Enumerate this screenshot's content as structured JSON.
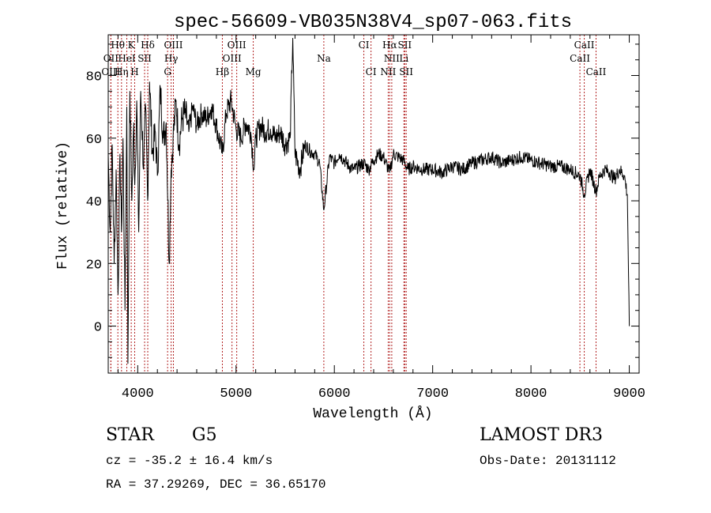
{
  "chart_data": {
    "type": "line",
    "title": "spec-56609-VB035N38V4_sp07-063.fits",
    "xlabel": "Wavelength (Å)",
    "ylabel": "Flux (relative)",
    "xlim": [
      3700,
      9100
    ],
    "ylim": [
      -15,
      93
    ],
    "xticks": [
      4000,
      5000,
      6000,
      7000,
      8000,
      9000
    ],
    "yticks": [
      0,
      20,
      40,
      60,
      80
    ],
    "series": [
      {
        "name": "flux",
        "x": [
          3700,
          3720,
          3740,
          3760,
          3780,
          3800,
          3820,
          3835,
          3850,
          3870,
          3889,
          3900,
          3920,
          3940,
          3960,
          3970,
          3990,
          4010,
          4030,
          4060,
          4080,
          4101,
          4120,
          4150,
          4180,
          4200,
          4230,
          4260,
          4290,
          4320,
          4340,
          4360,
          4390,
          4420,
          4450,
          4480,
          4520,
          4560,
          4600,
          4650,
          4700,
          4750,
          4800,
          4861,
          4900,
          4950,
          5000,
          5050,
          5100,
          5150,
          5183,
          5200,
          5250,
          5300,
          5350,
          5400,
          5450,
          5500,
          5550,
          5577,
          5600,
          5650,
          5700,
          5750,
          5800,
          5850,
          5893,
          5950,
          6000,
          6050,
          6100,
          6150,
          6200,
          6250,
          6300,
          6350,
          6400,
          6450,
          6500,
          6563,
          6600,
          6650,
          6700,
          6750,
          6800,
          6900,
          7000,
          7100,
          7200,
          7300,
          7400,
          7500,
          7600,
          7700,
          7800,
          7900,
          8000,
          8100,
          8200,
          8300,
          8400,
          8500,
          8542,
          8600,
          8662,
          8700,
          8750,
          8800,
          8850,
          8900,
          8950,
          8980,
          9000
        ],
        "y": [
          55,
          30,
          58,
          20,
          50,
          10,
          55,
          30,
          60,
          5,
          70,
          -12,
          75,
          40,
          65,
          45,
          72,
          30,
          75,
          50,
          70,
          40,
          78,
          55,
          62,
          48,
          76,
          60,
          65,
          20,
          50,
          60,
          72,
          58,
          66,
          68,
          62,
          70,
          64,
          68,
          66,
          70,
          64,
          55,
          68,
          72,
          63,
          60,
          65,
          62,
          50,
          60,
          64,
          62,
          63,
          60,
          62,
          58,
          60,
          92,
          55,
          50,
          58,
          56,
          55,
          52,
          37,
          54,
          52,
          55,
          53,
          51,
          50,
          51,
          52,
          50,
          53,
          55,
          54,
          49,
          55,
          54,
          53,
          50,
          51,
          50,
          50,
          49,
          51,
          50,
          52,
          53,
          54,
          52,
          53,
          54,
          53,
          52,
          51,
          51,
          50,
          48,
          42,
          50,
          43,
          48,
          50,
          49,
          47,
          50,
          48,
          42,
          0
        ]
      }
    ],
    "lines": [
      {
        "label": "Hθ",
        "x": 3798,
        "row": 0
      },
      {
        "label": "K",
        "x": 3934,
        "row": 0
      },
      {
        "label": "Hδ",
        "x": 4102,
        "row": 0
      },
      {
        "label": "OIII",
        "x": 4363,
        "row": 0
      },
      {
        "label": "OIII",
        "x": 5007,
        "row": 0
      },
      {
        "label": "CI",
        "x": 6300,
        "row": 0
      },
      {
        "label": "Hα",
        "x": 6563,
        "row": 0
      },
      {
        "label": "SII",
        "x": 6716,
        "row": 0
      },
      {
        "label": "CaII",
        "x": 8542,
        "row": 0
      },
      {
        "label": "OII",
        "x": 3727,
        "row": 1
      },
      {
        "label": "HeI",
        "x": 3889,
        "row": 1
      },
      {
        "label": "SII",
        "x": 4070,
        "row": 1
      },
      {
        "label": "Hγ",
        "x": 4340,
        "row": 1
      },
      {
        "label": "OIII",
        "x": 4959,
        "row": 1
      },
      {
        "label": "NII",
        "x": 6584,
        "row": 1
      },
      {
        "label": "Li",
        "x": 6708,
        "row": 1
      },
      {
        "label": "CaII",
        "x": 8498,
        "row": 1
      },
      {
        "label": "OIII",
        "x": 3727,
        "row": 2
      },
      {
        "label": "Hη",
        "x": 3835,
        "row": 2
      },
      {
        "label": "H",
        "x": 3969,
        "row": 2
      },
      {
        "label": "G",
        "x": 4304,
        "row": 2
      },
      {
        "label": "Hβ",
        "x": 4861,
        "row": 2
      },
      {
        "label": "Mg",
        "x": 5175,
        "row": 2
      },
      {
        "label": "Na",
        "x": 5893,
        "row": 1
      },
      {
        "label": "CI",
        "x": 6373,
        "row": 2
      },
      {
        "label": "NII",
        "x": 6548,
        "row": 2
      },
      {
        "label": "SII",
        "x": 6731,
        "row": 2
      },
      {
        "label": "CaII",
        "x": 8662,
        "row": 2
      }
    ]
  },
  "info": {
    "object_type": "STAR",
    "subclass": "G5",
    "survey": "LAMOST DR3",
    "cz": "cz = -35.2 ± 16.4 km/s",
    "obs_date": "Obs-Date: 20131112",
    "radec": "RA =  37.29269, DEC =  36.65170"
  },
  "colors": {
    "line_marker": "#b22222",
    "spectrum": "#000000",
    "axes": "#000000"
  }
}
